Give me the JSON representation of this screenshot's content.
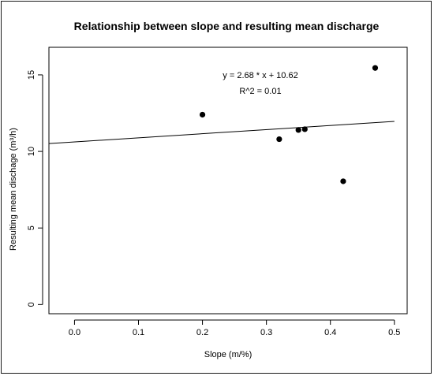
{
  "chart_data": {
    "type": "scatter",
    "title": "Relationship between slope and resulting mean discharge",
    "xlabel": "Slope (m/%)",
    "ylabel": "Resulting mean dischage (m³/h)",
    "xlim": [
      -0.04,
      0.52
    ],
    "ylim": [
      -0.6,
      16.8
    ],
    "xticks": [
      0.0,
      0.1,
      0.2,
      0.3,
      0.4,
      0.5
    ],
    "xtick_labels": [
      "0.0",
      "0.1",
      "0.2",
      "0.3",
      "0.4",
      "0.5"
    ],
    "yticks": [
      0,
      5,
      10,
      15
    ],
    "ytick_labels": [
      "0",
      "5",
      "10",
      "15"
    ],
    "points": [
      {
        "x": 0.2,
        "y": 12.4
      },
      {
        "x": 0.32,
        "y": 10.8
      },
      {
        "x": 0.35,
        "y": 11.4
      },
      {
        "x": 0.36,
        "y": 11.45
      },
      {
        "x": 0.42,
        "y": 8.05
      },
      {
        "x": 0.47,
        "y": 15.45
      }
    ],
    "regression": {
      "slope": 2.68,
      "intercept": 10.62,
      "x_from": -0.04,
      "x_to": 0.5
    },
    "annotations": {
      "equation": "y = 2.68 * x + 10.62",
      "r2": "R^2 = 0.01"
    },
    "grid": false,
    "legend": "none"
  }
}
